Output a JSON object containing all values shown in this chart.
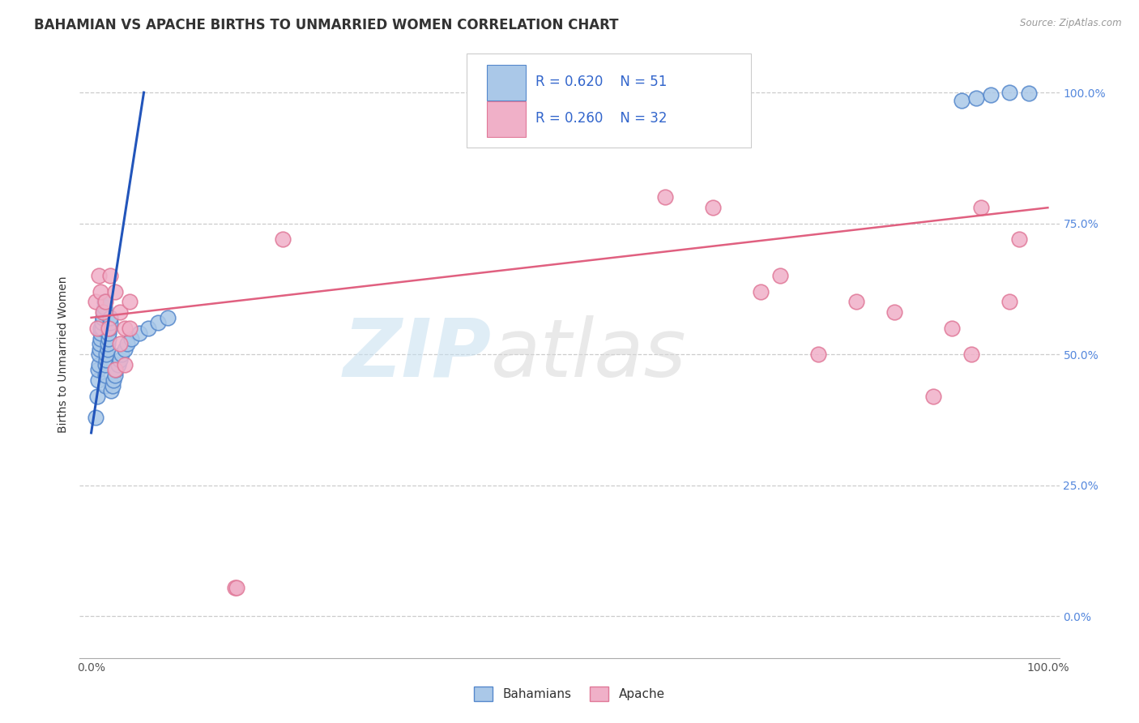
{
  "title": "BAHAMIAN VS APACHE BIRTHS TO UNMARRIED WOMEN CORRELATION CHART",
  "source": "Source: ZipAtlas.com",
  "watermark_zip": "ZIP",
  "watermark_atlas": "atlas",
  "ylabel": "Births to Unmarried Women",
  "yticks": [
    "0.0%",
    "25.0%",
    "50.0%",
    "75.0%",
    "100.0%"
  ],
  "ytick_vals": [
    0.0,
    0.25,
    0.5,
    0.75,
    1.0
  ],
  "legend_blue_r": "R = 0.620",
  "legend_blue_n": "N = 51",
  "legend_pink_r": "R = 0.260",
  "legend_pink_n": "N = 32",
  "legend_blue_label": "Bahamians",
  "legend_pink_label": "Apache",
  "blue_color": "#aac8e8",
  "blue_edge": "#5588cc",
  "pink_color": "#f0b0c8",
  "pink_edge": "#e07898",
  "blue_line_color": "#2255bb",
  "pink_line_color": "#e06080",
  "title_fontsize": 12,
  "axis_label_fontsize": 10,
  "tick_fontsize": 10,
  "blue_x": [
    0.005,
    0.006,
    0.007,
    0.007,
    0.008,
    0.008,
    0.009,
    0.009,
    0.01,
    0.01,
    0.01,
    0.011,
    0.011,
    0.012,
    0.012,
    0.013,
    0.013,
    0.014,
    0.014,
    0.015,
    0.015,
    0.015,
    0.016,
    0.016,
    0.017,
    0.017,
    0.018,
    0.018,
    0.019,
    0.02,
    0.02,
    0.021,
    0.022,
    0.023,
    0.025,
    0.026,
    0.028,
    0.03,
    0.032,
    0.035,
    0.038,
    0.042,
    0.05,
    0.06,
    0.07,
    0.08,
    0.91,
    0.925,
    0.94,
    0.96,
    0.98
  ],
  "blue_y": [
    0.38,
    0.42,
    0.45,
    0.47,
    0.48,
    0.5,
    0.51,
    0.52,
    0.53,
    0.54,
    0.55,
    0.55,
    0.56,
    0.57,
    0.57,
    0.58,
    0.58,
    0.59,
    0.6,
    0.44,
    0.46,
    0.48,
    0.49,
    0.5,
    0.51,
    0.52,
    0.53,
    0.54,
    0.55,
    0.56,
    0.57,
    0.43,
    0.44,
    0.45,
    0.46,
    0.47,
    0.48,
    0.49,
    0.5,
    0.51,
    0.52,
    0.53,
    0.54,
    0.55,
    0.56,
    0.57,
    0.985,
    0.99,
    0.995,
    1.0,
    0.998
  ],
  "pink_x": [
    0.005,
    0.006,
    0.008,
    0.01,
    0.012,
    0.015,
    0.018,
    0.02,
    0.025,
    0.03,
    0.035,
    0.04,
    0.15,
    0.152,
    0.2,
    0.6,
    0.65,
    0.7,
    0.72,
    0.76,
    0.8,
    0.84,
    0.88,
    0.9,
    0.92,
    0.93,
    0.96,
    0.97,
    0.025,
    0.03,
    0.035,
    0.04
  ],
  "pink_y": [
    0.6,
    0.55,
    0.65,
    0.62,
    0.58,
    0.6,
    0.55,
    0.65,
    0.62,
    0.58,
    0.55,
    0.6,
    0.055,
    0.055,
    0.72,
    0.8,
    0.78,
    0.62,
    0.65,
    0.5,
    0.6,
    0.58,
    0.42,
    0.55,
    0.5,
    0.78,
    0.6,
    0.72,
    0.47,
    0.52,
    0.48,
    0.55
  ]
}
